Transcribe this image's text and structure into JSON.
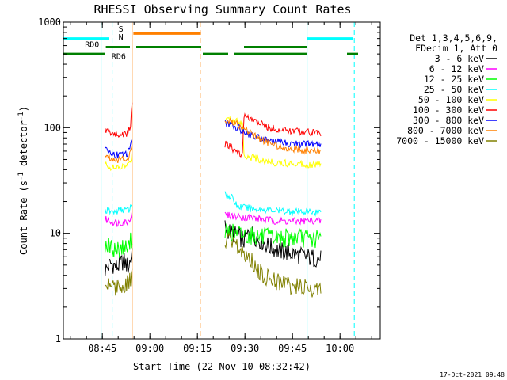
{
  "chart_data": {
    "type": "line",
    "title": "RHESSI Observing Summary Count Rates",
    "xlabel": "Start Time (22-Nov-10 08:32:42)",
    "ylabel": "Count Rate (s⁻¹ detector⁻¹)",
    "ylabel_parts": [
      "Count Rate (s",
      "-1",
      " detector",
      "-1",
      ")"
    ],
    "yscale": "log",
    "xlim_minutes": [
      0,
      100
    ],
    "ylim": [
      1,
      1000
    ],
    "x_ticks": [
      {
        "min": 12.3,
        "label": "08:45"
      },
      {
        "min": 27.3,
        "label": "09:00"
      },
      {
        "min": 42.3,
        "label": "09:15"
      },
      {
        "min": 57.3,
        "label": "09:30"
      },
      {
        "min": 72.3,
        "label": "09:45"
      },
      {
        "min": 87.3,
        "label": "10:00"
      }
    ],
    "y_ticks": [
      {
        "value": 1,
        "label": "1"
      },
      {
        "value": 10,
        "label": "10"
      },
      {
        "value": 100,
        "label": "100"
      },
      {
        "value": 1000,
        "label": "1000"
      }
    ],
    "legend_header": [
      "Det 1,3,4,5,6,9,",
      "FDecim 1, Att 0"
    ],
    "legend_position": "right",
    "series": [
      {
        "name": "3 - 6 keV",
        "color": "#000000",
        "segments": [
          {
            "x": [
              13.2,
              15,
              17,
              19,
              20.5,
              21.3,
              21.7
            ],
            "y": [
              4.5,
              5.2,
              4.8,
              5.5,
              4.8,
              5.8,
              7.0
            ]
          },
          {
            "x": [
              51.0,
              53,
              55,
              57,
              59,
              61,
              63,
              65,
              68,
              72,
              76,
              80,
              81.3
            ],
            "y": [
              11.5,
              10.0,
              9.5,
              8.5,
              10.5,
              9.0,
              8.2,
              7.5,
              6.8,
              6.5,
              6.0,
              5.8,
              5.7
            ]
          }
        ]
      },
      {
        "name": "6 - 12 keV",
        "color": "#ff00ff",
        "segments": [
          {
            "x": [
              13.2,
              15,
              17,
              19,
              20.5,
              21.3,
              21.7
            ],
            "y": [
              13.5,
              13.0,
              12.5,
              12.8,
              13.0,
              14.5,
              15.5
            ]
          },
          {
            "x": [
              51.0,
              54,
              57,
              60,
              63,
              66,
              70,
              74,
              78,
              81.3
            ],
            "y": [
              15.0,
              14.5,
              14.2,
              14.0,
              13.5,
              13.2,
              13.0,
              13.0,
              13.2,
              13.0
            ]
          }
        ]
      },
      {
        "name": "12 - 25 keV",
        "color": "#00ff00",
        "segments": [
          {
            "x": [
              13.2,
              15,
              17,
              19,
              20.5,
              21.3,
              21.7
            ],
            "y": [
              8.0,
              7.2,
              7.0,
              7.4,
              7.2,
              8.5,
              9.5
            ]
          },
          {
            "x": [
              51.0,
              54,
              57,
              60,
              63,
              66,
              70,
              74,
              78,
              81.3
            ],
            "y": [
              10.5,
              10.0,
              9.8,
              9.5,
              9.2,
              9.0,
              9.0,
              9.2,
              8.8,
              8.8
            ]
          }
        ]
      },
      {
        "name": "25 - 50 keV",
        "color": "#00ffff",
        "segments": [
          {
            "x": [
              13.2,
              15,
              17,
              19,
              20.5,
              21.3,
              21.7
            ],
            "y": [
              16.5,
              16.0,
              16.2,
              16.8,
              16.5,
              17.5,
              18.0
            ]
          },
          {
            "x": [
              51.0,
              53,
              55,
              57,
              60,
              63,
              66,
              70,
              74,
              78,
              81.3
            ],
            "y": [
              24.0,
              22.0,
              18.0,
              17.5,
              17.0,
              16.8,
              16.5,
              16.2,
              16.0,
              16.0,
              16.0
            ]
          }
        ]
      },
      {
        "name": "50 - 100 keV",
        "color": "#ffff00",
        "segments": [
          {
            "x": [
              13.2,
              15,
              17,
              19,
              20.5,
              21.3,
              21.7
            ],
            "y": [
              45.0,
              42.0,
              41.0,
              43.0,
              44.0,
              50.0,
              60.0
            ]
          },
          {
            "x": [
              51.0,
              53,
              55,
              56.5,
              57,
              60,
              63,
              66,
              70,
              74,
              78,
              81.3
            ],
            "y": [
              120.0,
              118.0,
              115.0,
              112.0,
              55.0,
              52.0,
              49.0,
              47.0,
              46.0,
              46.0,
              45.0,
              45.0
            ]
          }
        ]
      },
      {
        "name": "100 - 300 keV",
        "color": "#ff0000",
        "segments": [
          {
            "x": [
              13.2,
              15,
              17,
              19,
              20.5,
              21.3,
              21.7,
              21.9
            ],
            "y": [
              95.0,
              90.0,
              85.0,
              87.0,
              90.0,
              110.0,
              180.0,
              240.0
            ]
          },
          {
            "x": [
              51.0,
              53,
              55,
              56.5,
              57,
              59,
              62,
              65,
              68,
              72,
              76,
              80,
              81.3
            ],
            "y": [
              70.0,
              65.0,
              58.0,
              55.0,
              130.0,
              120.0,
              110.0,
              100.0,
              96.0,
              93.0,
              92.0,
              90.0,
              90.0
            ]
          }
        ]
      },
      {
        "name": "300 - 800 keV",
        "color": "#0000ff",
        "segments": [
          {
            "x": [
              13.2,
              15,
              17,
              19,
              20.5,
              21.3,
              21.7
            ],
            "y": [
              62.0,
              58.0,
              55.0,
              56.0,
              58.0,
              66.0,
              80.0
            ]
          },
          {
            "x": [
              51.0,
              53,
              55,
              57,
              59,
              62,
              65,
              68,
              72,
              76,
              80,
              81.3
            ],
            "y": [
              110.0,
              105.0,
              100.0,
              92.0,
              86.0,
              80.0,
              76.0,
              73.0,
              71.0,
              70.0,
              69.0,
              69.0
            ]
          }
        ]
      },
      {
        "name": "800 - 7000 keV",
        "color": "#ff8000",
        "segments": [
          {
            "x": [
              13.2,
              15,
              17,
              19,
              20.5,
              21.3,
              21.7
            ],
            "y": [
              55.0,
              52.0,
              50.0,
              51.0,
              52.0,
              58.0,
              70.0
            ]
          },
          {
            "x": [
              51.0,
              53,
              55,
              57,
              59,
              62,
              65,
              68,
              72,
              76,
              80,
              81.3
            ],
            "y": [
              120.0,
              115.0,
              108.0,
              100.0,
              88.0,
              78.0,
              72.0,
              67.0,
              63.0,
              61.0,
              60.0,
              60.0
            ]
          }
        ]
      },
      {
        "name": "7000 - 15000 keV",
        "color": "#808000",
        "segments": [
          {
            "x": [
              13.2,
              15,
              17,
              19,
              20.5,
              21.3,
              21.7
            ],
            "y": [
              3.2,
              3.5,
              3.0,
              3.3,
              3.2,
              3.8,
              4.0
            ]
          },
          {
            "x": [
              51.0,
              53,
              55,
              57,
              59,
              61,
              63,
              65,
              68,
              72,
              76,
              80,
              81.3
            ],
            "y": [
              8.5,
              8.0,
              7.2,
              6.5,
              6.0,
              4.5,
              4.0,
              3.8,
              3.5,
              3.2,
              3.0,
              3.0,
              3.0
            ]
          }
        ]
      }
    ],
    "vertical_markers": [
      {
        "min": 11.9,
        "color": "#00ffff",
        "style": "solid"
      },
      {
        "min": 15.4,
        "color": "#00ffff",
        "style": "dashed"
      },
      {
        "min": 21.7,
        "color": "#ff8000",
        "style": "solid"
      },
      {
        "min": 43.2,
        "color": "#ff8000",
        "style": "dashed"
      },
      {
        "min": 76.9,
        "color": "#00ffff",
        "style": "solid"
      },
      {
        "min": 91.8,
        "color": "#00ffff",
        "style": "dashed"
      }
    ],
    "status_bars": [
      {
        "name": "saa",
        "color": "#00ffff",
        "value": 700,
        "x": [
          [
            0,
            14.3
          ],
          [
            77.0,
            91.5
          ]
        ]
      },
      {
        "name": "night",
        "color": "#ff8000",
        "value": 780,
        "x": [
          [
            22.1,
            43.4
          ]
        ]
      },
      {
        "name": "rd0",
        "color": "#008000",
        "value": 580,
        "x": [
          [
            13.4,
            21.0
          ],
          [
            23.0,
            43.5
          ],
          [
            57.0,
            77.0
          ]
        ]
      },
      {
        "name": "rd6",
        "color": "#008000",
        "value": 500,
        "x": [
          [
            0,
            13.2
          ],
          [
            44.0,
            52.0
          ],
          [
            54.0,
            77.0
          ],
          [
            89.5,
            93.0
          ]
        ]
      }
    ],
    "annotations": [
      {
        "text": "RD0",
        "color": "#008000",
        "min": 6.8,
        "value": 620
      },
      {
        "text": "RD6",
        "color": "#008000",
        "min": 15.2,
        "value": 480
      },
      {
        "text": "S",
        "color": "#ff8000",
        "min": 17.4,
        "value": 870
      },
      {
        "text": "N",
        "color": "#00ffff",
        "min": 17.4,
        "value": 730
      }
    ]
  },
  "footer": {
    "timestamp": "17-Oct-2021 09:48"
  }
}
